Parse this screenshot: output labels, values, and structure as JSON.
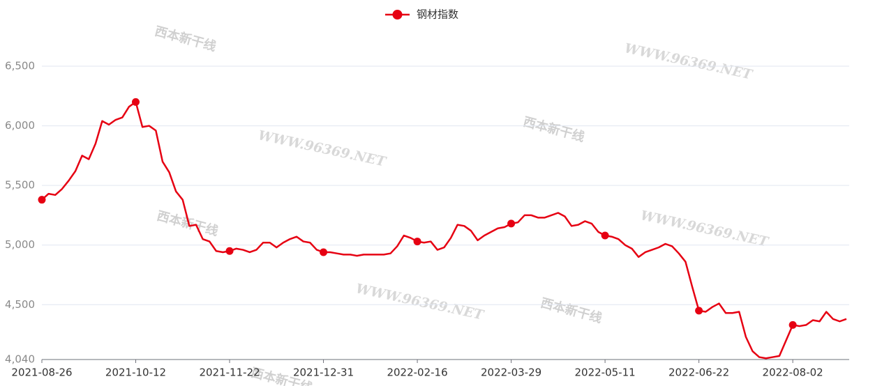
{
  "chart_data": {
    "type": "line",
    "watermark": "WWW.96369.NET",
    "watermark_logo": "西本新干线",
    "categories": [
      "2021-08-26",
      null,
      null,
      null,
      null,
      null,
      null,
      null,
      null,
      null,
      null,
      null,
      null,
      null,
      "2021-10-12",
      null,
      null,
      null,
      null,
      null,
      null,
      null,
      null,
      null,
      null,
      null,
      null,
      null,
      "2021-11-22",
      null,
      null,
      null,
      null,
      null,
      null,
      null,
      null,
      null,
      null,
      null,
      null,
      null,
      "2021-12-31",
      null,
      null,
      null,
      null,
      null,
      null,
      null,
      null,
      null,
      null,
      null,
      null,
      null,
      "2022-02-16",
      null,
      null,
      null,
      null,
      null,
      null,
      null,
      null,
      null,
      null,
      null,
      null,
      null,
      "2022-03-29",
      null,
      null,
      null,
      null,
      null,
      null,
      null,
      null,
      null,
      null,
      null,
      null,
      null,
      "2022-05-11",
      null,
      null,
      null,
      null,
      null,
      null,
      null,
      null,
      null,
      null,
      null,
      null,
      null,
      "2022-06-22",
      null,
      null,
      null,
      null,
      null,
      null,
      null,
      null,
      null,
      null,
      null,
      null,
      null,
      "2022-08-02",
      null,
      null,
      null,
      null,
      null,
      null,
      null,
      null
    ],
    "series": [
      {
        "name": "钢材指数",
        "color": "#e60012",
        "values": [
          5380,
          5430,
          5420,
          5470,
          5540,
          5620,
          5750,
          5720,
          5850,
          6040,
          6010,
          6050,
          6070,
          6160,
          6200,
          5990,
          6000,
          5960,
          5700,
          5610,
          5450,
          5380,
          5160,
          5170,
          5050,
          5030,
          4950,
          4940,
          4950,
          4970,
          4960,
          4940,
          4960,
          5020,
          5020,
          4980,
          5020,
          5050,
          5070,
          5030,
          5020,
          4960,
          4940,
          4940,
          4930,
          4920,
          4920,
          4910,
          4920,
          4920,
          4920,
          4920,
          4930,
          4990,
          5080,
          5060,
          5030,
          5020,
          5030,
          4960,
          4980,
          5060,
          5170,
          5160,
          5120,
          5040,
          5080,
          5110,
          5140,
          5150,
          5180,
          5190,
          5250,
          5250,
          5230,
          5230,
          5250,
          5270,
          5240,
          5160,
          5170,
          5200,
          5180,
          5110,
          5080,
          5070,
          5050,
          5000,
          4970,
          4900,
          4940,
          4960,
          4980,
          5010,
          4990,
          4930,
          4860,
          4650,
          4450,
          4440,
          4480,
          4510,
          4430,
          4430,
          4440,
          4230,
          4110,
          4060,
          4050,
          4060,
          4070,
          4200,
          4330,
          4320,
          4330,
          4370,
          4360,
          4440,
          4380,
          4360,
          4380
        ]
      }
    ],
    "ylim": [
      4040,
      6500
    ],
    "yticks": [
      {
        "value": 4040,
        "label": "4,040"
      },
      {
        "value": 4500,
        "label": "4,500"
      },
      {
        "value": 5000,
        "label": "5,000"
      },
      {
        "value": 5500,
        "label": "5,500"
      },
      {
        "value": 6000,
        "label": "6,000"
      },
      {
        "value": 6500,
        "label": "6,500"
      }
    ],
    "grid": true
  }
}
